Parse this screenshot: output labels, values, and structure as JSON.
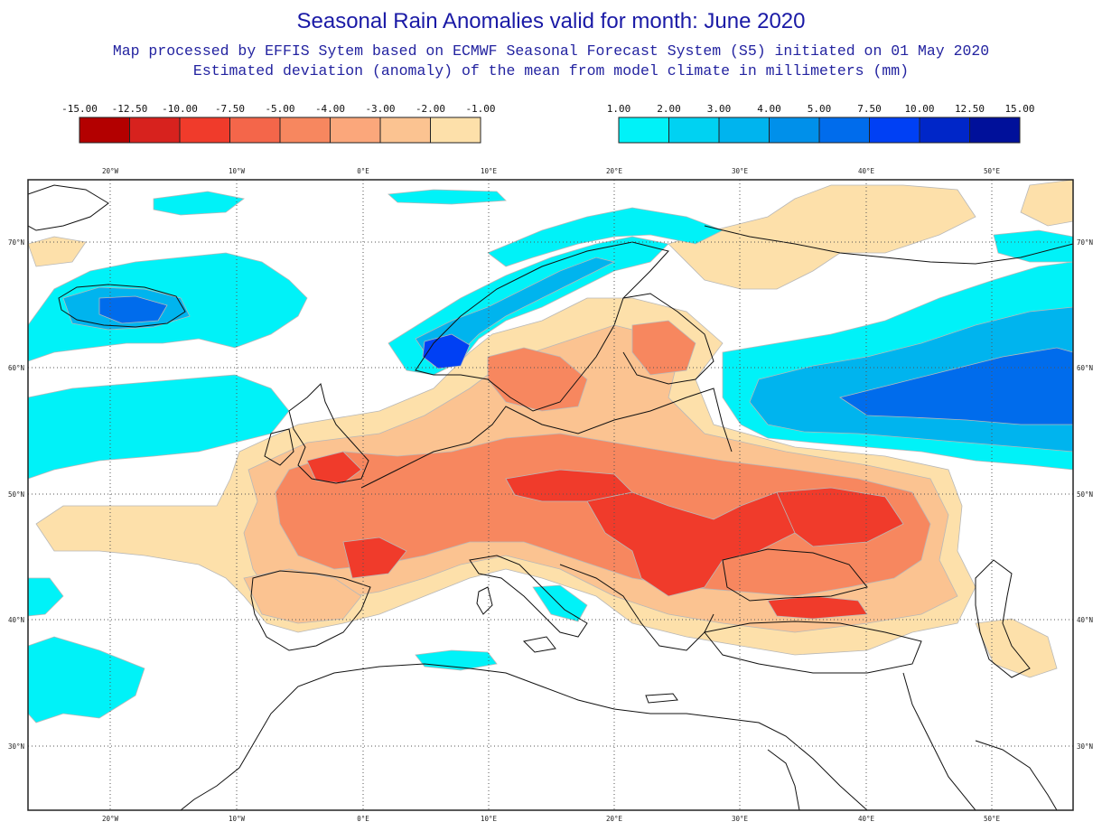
{
  "title": "Seasonal Rain Anomalies valid for month: June 2020",
  "subtitle_1": "Map processed by EFFIS Sytem based on ECMWF Seasonal Forecast System (S5) initiated on 01 May 2020",
  "subtitle_2": "Estimated deviation (anomaly) of the mean from model climate in millimeters (mm)",
  "legend": {
    "negative": {
      "labels": [
        "-15.00",
        "-12.50",
        "-10.00",
        "-7.50",
        "-5.00",
        "-4.00",
        "-3.00",
        "-2.00",
        "-1.00"
      ],
      "colors": [
        "#b30000",
        "#d7221e",
        "#f03b2b",
        "#f4664a",
        "#f7875f",
        "#fba77b",
        "#fbc391",
        "#fde0aa"
      ]
    },
    "positive": {
      "labels": [
        "1.00",
        "2.00",
        "3.00",
        "4.00",
        "5.00",
        "7.50",
        "10.00",
        "12.50",
        "15.00"
      ],
      "colors": [
        "#00f2f8",
        "#00d2f2",
        "#00b4ee",
        "#0090ea",
        "#006cec",
        "#0040f4",
        "#0026c8",
        "#00109a"
      ]
    }
  },
  "axes": {
    "lon_labels": [
      "20°W",
      "10°W",
      "0°E",
      "10°E",
      "20°E",
      "30°E",
      "40°E",
      "50°E"
    ],
    "lat_labels": [
      "70°N",
      "60°N",
      "50°N",
      "40°N",
      "30°N"
    ]
  },
  "map_colors": {
    "pale": "#fde0aa",
    "light_orange": "#fbc391",
    "orange": "#f7875f",
    "red": "#f03b2b",
    "cyan": "#00f2f8",
    "light_blue": "#00b4ee",
    "blue": "#006cec",
    "dark_blue": "#0040f4",
    "coast": "#111111",
    "grid": "#555555"
  }
}
